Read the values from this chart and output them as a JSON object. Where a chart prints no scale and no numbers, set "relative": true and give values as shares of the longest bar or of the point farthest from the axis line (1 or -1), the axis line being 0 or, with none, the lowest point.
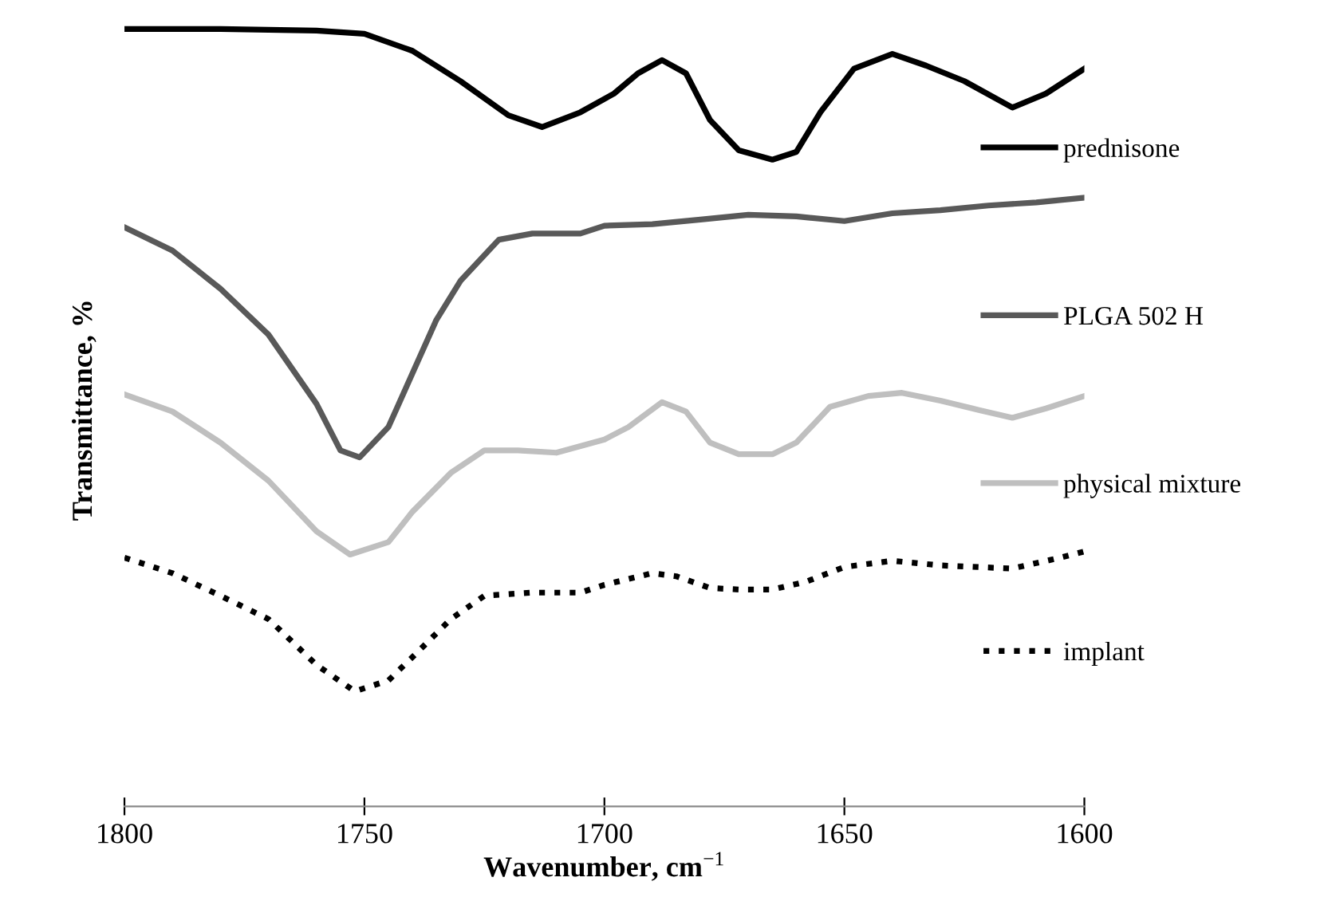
{
  "chart_data": {
    "type": "line",
    "relative": true,
    "xlabel": "Wavenumber, cm$^{−1}$",
    "ylabel": "Transmittance, %",
    "xlim": [
      1800,
      1600
    ],
    "xticks": [
      1800,
      1750,
      1700,
      1650,
      1600
    ],
    "tick_labels": "x",
    "grid": false,
    "legend": "right",
    "marker": "none",
    "series": [
      {
        "name": "prednisone",
        "color": "#000000",
        "line_style": "solid",
        "x": [
          1800,
          1780,
          1760,
          1750,
          1740,
          1730,
          1720,
          1713,
          1705,
          1698,
          1693,
          1688,
          1683,
          1678,
          1672,
          1665,
          1660,
          1655,
          1648,
          1640,
          1633,
          1625,
          1615,
          1608,
          1600
        ],
        "values": [
          1.0,
          1.0,
          0.998,
          0.994,
          0.972,
          0.933,
          0.889,
          0.874,
          0.893,
          0.917,
          0.943,
          0.96,
          0.943,
          0.883,
          0.844,
          0.832,
          0.842,
          0.893,
          0.949,
          0.968,
          0.953,
          0.933,
          0.899,
          0.917,
          0.949
        ]
      },
      {
        "name": "PLGA 502 H",
        "color": "#595959",
        "line_style": "solid",
        "x": [
          1800,
          1790,
          1780,
          1770,
          1760,
          1755,
          1751,
          1745,
          1740,
          1735,
          1730,
          1722,
          1715,
          1705,
          1700,
          1690,
          1680,
          1670,
          1660,
          1650,
          1640,
          1630,
          1620,
          1610,
          1600
        ],
        "values": [
          0.745,
          0.715,
          0.666,
          0.607,
          0.518,
          0.458,
          0.449,
          0.488,
          0.557,
          0.626,
          0.676,
          0.729,
          0.737,
          0.737,
          0.747,
          0.749,
          0.755,
          0.761,
          0.759,
          0.753,
          0.763,
          0.767,
          0.773,
          0.777,
          0.783
        ]
      },
      {
        "name": "physical mixture",
        "color": "#bfbfbf",
        "line_style": "solid",
        "x": [
          1800,
          1790,
          1780,
          1770,
          1760,
          1753,
          1745,
          1740,
          1732,
          1725,
          1718,
          1710,
          1700,
          1695,
          1688,
          1683,
          1678,
          1672,
          1665,
          1660,
          1653,
          1645,
          1638,
          1630,
          1622,
          1615,
          1608,
          1600
        ],
        "values": [
          0.53,
          0.508,
          0.468,
          0.419,
          0.354,
          0.324,
          0.34,
          0.379,
          0.429,
          0.458,
          0.458,
          0.455,
          0.472,
          0.488,
          0.52,
          0.508,
          0.468,
          0.453,
          0.453,
          0.468,
          0.514,
          0.528,
          0.532,
          0.522,
          0.51,
          0.5,
          0.512,
          0.528
        ]
      },
      {
        "name": "implant",
        "color": "#000000",
        "line_style": "dotted",
        "x": [
          1800,
          1790,
          1780,
          1770,
          1760,
          1752,
          1745,
          1740,
          1732,
          1725,
          1715,
          1705,
          1700,
          1690,
          1685,
          1678,
          1672,
          1665,
          1658,
          1650,
          1640,
          1630,
          1615,
          1605,
          1600
        ],
        "values": [
          0.32,
          0.3,
          0.271,
          0.241,
          0.182,
          0.148,
          0.162,
          0.192,
          0.241,
          0.271,
          0.275,
          0.275,
          0.285,
          0.3,
          0.296,
          0.281,
          0.279,
          0.279,
          0.289,
          0.308,
          0.316,
          0.31,
          0.306,
          0.32,
          0.328
        ]
      }
    ]
  }
}
